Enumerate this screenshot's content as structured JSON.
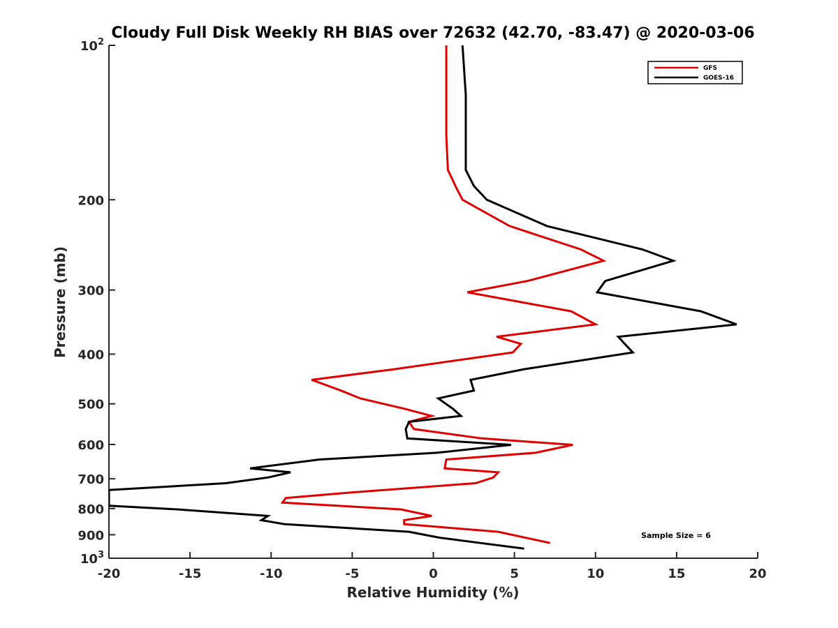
{
  "chart_data": {
    "type": "line",
    "title": "Cloudy Full Disk Weekly RH BIAS over 72632 (42.70, -83.47) @ 2020-03-06",
    "xlabel": "Relative Humidity (%)",
    "ylabel": "Pressure (mb)",
    "xlim": [
      -20,
      20
    ],
    "ylim": [
      100,
      1000
    ],
    "yscale": "log",
    "y_reversed": true,
    "grid": false,
    "legend_placement": "top-right",
    "x_ticks": [
      -20,
      -15,
      -10,
      -5,
      0,
      5,
      10,
      15,
      20
    ],
    "x_tick_labels": [
      "-20",
      "-15",
      "-10",
      "-5",
      "0",
      "5",
      "10",
      "15",
      "20"
    ],
    "y_ticks": [
      {
        "value": 100,
        "base": "10",
        "exp": "2"
      },
      {
        "value": 200,
        "label": "200"
      },
      {
        "value": 300,
        "label": "300"
      },
      {
        "value": 400,
        "label": "400"
      },
      {
        "value": 500,
        "label": "500"
      },
      {
        "value": 600,
        "label": "600"
      },
      {
        "value": 700,
        "label": "700"
      },
      {
        "value": 800,
        "label": "800"
      },
      {
        "value": 900,
        "label": "900"
      },
      {
        "value": 1000,
        "base": "10",
        "exp": "3"
      }
    ],
    "series": [
      {
        "name": "GFS",
        "color": "#e00000",
        "points": [
          [
            0.8,
            100
          ],
          [
            0.8,
            125
          ],
          [
            0.8,
            150
          ],
          [
            0.9,
            175
          ],
          [
            1.4,
            189
          ],
          [
            1.8,
            200
          ],
          [
            4.7,
            225
          ],
          [
            9.1,
            250
          ],
          [
            10.5,
            263
          ],
          [
            5.8,
            288
          ],
          [
            2.1,
            303
          ],
          [
            8.5,
            330
          ],
          [
            10.0,
            350
          ],
          [
            3.9,
            370
          ],
          [
            5.4,
            382
          ],
          [
            4.9,
            397
          ],
          [
            -2.4,
            428
          ],
          [
            -7.5,
            449
          ],
          [
            -5.7,
            471
          ],
          [
            -4.5,
            488
          ],
          [
            -1.8,
            511
          ],
          [
            -0.1,
            528
          ],
          [
            -1.5,
            542
          ],
          [
            -1.2,
            560
          ],
          [
            3.0,
            584
          ],
          [
            8.6,
            601
          ],
          [
            6.3,
            623
          ],
          [
            0.8,
            642
          ],
          [
            0.7,
            668
          ],
          [
            4.0,
            680
          ],
          [
            3.7,
            696
          ],
          [
            2.6,
            714
          ],
          [
            -5.0,
            744
          ],
          [
            -9.1,
            763
          ],
          [
            -9.3,
            779
          ],
          [
            -2.0,
            803
          ],
          [
            -0.1,
            827
          ],
          [
            -1.8,
            843
          ],
          [
            -1.8,
            858
          ],
          [
            4.0,
            888
          ],
          [
            7.2,
            934
          ]
        ]
      },
      {
        "name": "GOES-16",
        "color": "#000000",
        "points": [
          [
            1.8,
            100
          ],
          [
            2.0,
            125
          ],
          [
            2.0,
            150
          ],
          [
            2.0,
            175
          ],
          [
            2.5,
            188
          ],
          [
            3.3,
            200
          ],
          [
            7.0,
            225
          ],
          [
            12.9,
            250
          ],
          [
            14.8,
            263
          ],
          [
            10.6,
            288
          ],
          [
            10.1,
            303
          ],
          [
            16.5,
            330
          ],
          [
            18.7,
            350
          ],
          [
            11.4,
            370
          ],
          [
            11.8,
            382
          ],
          [
            12.3,
            397
          ],
          [
            5.6,
            428
          ],
          [
            2.3,
            449
          ],
          [
            2.5,
            471
          ],
          [
            0.3,
            488
          ],
          [
            1.2,
            511
          ],
          [
            1.7,
            528
          ],
          [
            -1.5,
            542
          ],
          [
            -1.7,
            560
          ],
          [
            -1.6,
            584
          ],
          [
            4.8,
            601
          ],
          [
            0.2,
            623
          ],
          [
            -7.0,
            642
          ],
          [
            -11.3,
            668
          ],
          [
            -8.8,
            680
          ],
          [
            -10.2,
            696
          ],
          [
            -12.8,
            714
          ],
          [
            -20.0,
            736
          ],
          [
            -20.0,
            790
          ],
          [
            -15.8,
            803
          ],
          [
            -10.2,
            827
          ],
          [
            -10.6,
            843
          ],
          [
            -9.2,
            858
          ],
          [
            -1.5,
            888
          ],
          [
            0.4,
            912
          ],
          [
            2.9,
            934
          ],
          [
            5.6,
            958
          ]
        ]
      }
    ],
    "legend": [
      {
        "name": "GFS",
        "color": "#e00000"
      },
      {
        "name": "GOES-16",
        "color": "#000000"
      }
    ],
    "annotations": [
      "Sample Size = 6"
    ]
  }
}
